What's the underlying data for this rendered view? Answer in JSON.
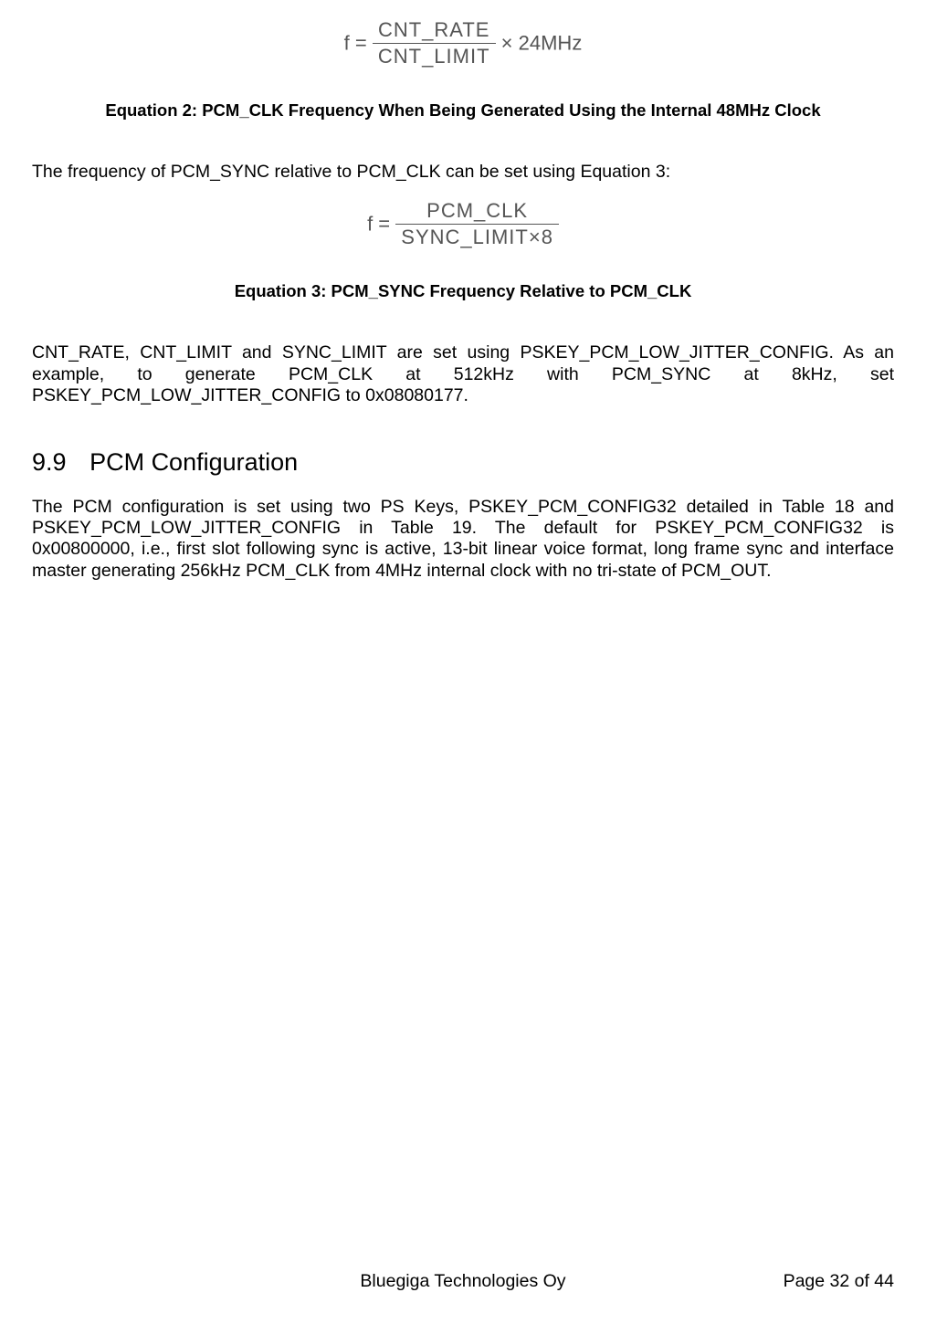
{
  "equation2": {
    "prefix": "f =",
    "numerator": "CNT_RATE",
    "denominator": "CNT_LIMIT",
    "suffix": "× 24MHz",
    "caption": "Equation 2: PCM_CLK Frequency When Being Generated Using the Internal 48MHz Clock",
    "color": "#555555"
  },
  "para1": "The frequency of PCM_SYNC relative to PCM_CLK can be set using Equation 3:",
  "equation3": {
    "prefix": "f =",
    "numerator": "PCM_CLK",
    "denominator": "SYNC_LIMIT×8",
    "caption": "Equation 3: PCM_SYNC Frequency Relative to PCM_CLK",
    "color": "#555555"
  },
  "para2": "CNT_RATE, CNT_LIMIT and SYNC_LIMIT are set using PSKEY_PCM_LOW_JITTER_CONFIG. As an example, to generate PCM_CLK at 512kHz with PCM_SYNC at 8kHz, set PSKEY_PCM_LOW_JITTER_CONFIG to 0x08080177.",
  "section": {
    "number": "9.9",
    "title": "PCM Configuration"
  },
  "para3": "The PCM configuration is set using two PS Keys, PSKEY_PCM_CONFIG32 detailed in Table 18 and PSKEY_PCM_LOW_JITTER_CONFIG in Table 19. The default for PSKEY_PCM_CONFIG32 is 0x00800000, i.e., first slot following sync is active, 13-bit linear voice format, long frame sync and interface master generating 256kHz PCM_CLK from 4MHz internal clock with no tri-state of PCM_OUT.",
  "footer": {
    "company": "Bluegiga Technologies Oy",
    "page": "Page 32 of 44"
  },
  "typography": {
    "body_fontsize": 19.5,
    "caption_fontsize": 18.5,
    "heading_fontsize": 27,
    "equation_fontsize": 22,
    "text_color": "#000000",
    "equation_color": "#555555",
    "background_color": "#ffffff"
  }
}
